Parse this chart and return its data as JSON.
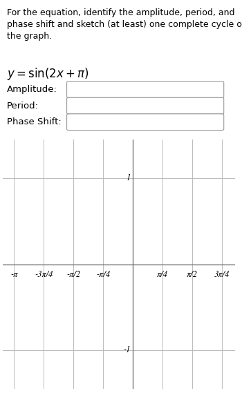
{
  "title_text": "For the equation, identify the amplitude, period, and phase shift and sketch (at least) one complete cycle of the graph.",
  "equation_latex": "y = \\sin(2x + \\pi)",
  "labels": [
    "Amplitude:",
    "Period:",
    "Phase Shift:"
  ],
  "bg_color": "#ffffff",
  "text_color": "#000000",
  "grid_color": "#bbbbbb",
  "axis_color": "#666666",
  "xlim": [
    -3.45,
    2.7
  ],
  "ylim": [
    -1.45,
    1.45
  ],
  "x_ticks": [
    -3.14159265,
    -2.35619449,
    -1.57079633,
    -0.78539816,
    0.0,
    0.78539816,
    1.57079633,
    2.35619449
  ],
  "x_tick_labels": [
    "-π",
    "-3π/4",
    "-π/2",
    "-π/4",
    "",
    "π/4",
    "π/2",
    "3π/4"
  ],
  "y_ticks": [
    -1,
    1
  ],
  "y_tick_labels": [
    "-1",
    "1"
  ],
  "font_size_title": 9.0,
  "font_size_eq": 12,
  "font_size_labels": 9.5,
  "font_size_tick": 9.0
}
